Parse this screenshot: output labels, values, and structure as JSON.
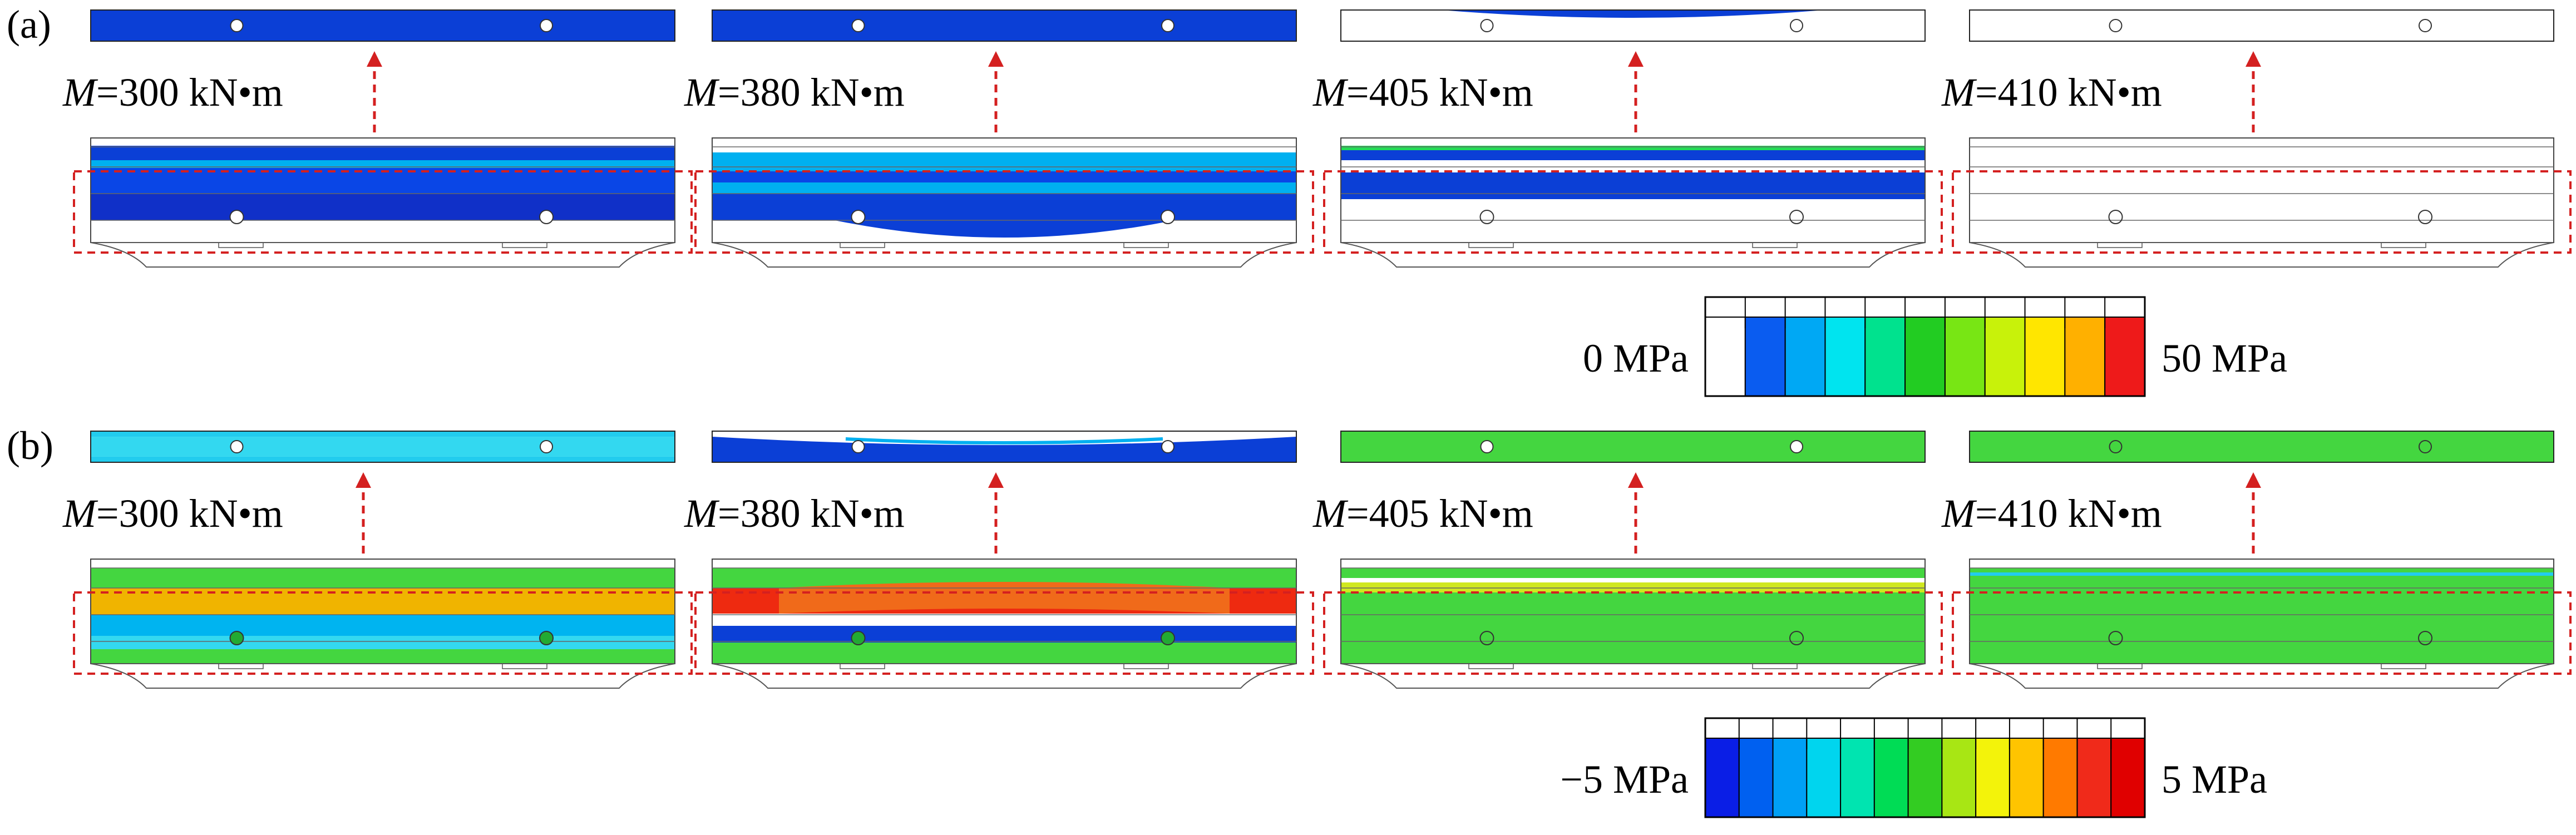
{
  "rows": [
    {
      "label": "(a)",
      "panels": [
        {
          "moment": "300",
          "unit": "kN•m",
          "state": "full_blue"
        },
        {
          "moment": "380",
          "unit": "kN•m",
          "state": "partial_blue"
        },
        {
          "moment": "405",
          "unit": "kN•m",
          "state": "thin_blue"
        },
        {
          "moment": "410",
          "unit": "kN•m",
          "state": "white"
        }
      ],
      "legend": {
        "min_label": "0 MPa",
        "max_label": "50 MPa",
        "colors": [
          "#ffffff",
          "#0a5cf0",
          "#00a8f4",
          "#00e4ef",
          "#00e28e",
          "#22cc22",
          "#78e614",
          "#c8f20a",
          "#ffe600",
          "#ffb000",
          "#ee1a1a"
        ]
      }
    },
    {
      "label": "(b)",
      "panels": [
        {
          "moment": "300",
          "unit": "kN•m",
          "state": "orange_top"
        },
        {
          "moment": "380",
          "unit": "kN•m",
          "state": "red_top"
        },
        {
          "moment": "405",
          "unit": "kN•m",
          "state": "green_mix"
        },
        {
          "moment": "410",
          "unit": "kN•m",
          "state": "green"
        }
      ],
      "legend": {
        "min_label": "−5 MPa",
        "max_label": "5 MPa",
        "colors": [
          "#0a1ee6",
          "#0060f0",
          "#00a0f5",
          "#00d5ee",
          "#00e4b0",
          "#00dc55",
          "#33cc22",
          "#a8e614",
          "#f3f30a",
          "#ffc400",
          "#ff7a00",
          "#f02a1a",
          "#e00000"
        ]
      }
    }
  ],
  "moment_symbol": "M"
}
